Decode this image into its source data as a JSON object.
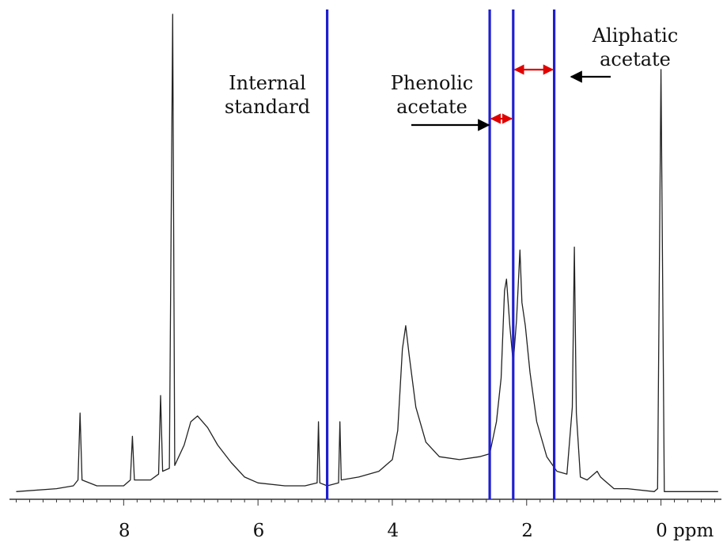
{
  "chart_data": {
    "type": "line",
    "title": "",
    "xlabel": "",
    "ylabel": "",
    "x_unit": "ppm",
    "x_reversed": true,
    "xlim": [
      9.7,
      -0.9
    ],
    "x_ticks": [
      8,
      6,
      4,
      2,
      0
    ],
    "x_tick_labels": [
      "8",
      "6",
      "4",
      "2",
      "0 ppm"
    ],
    "grid": false,
    "colors": {
      "spectrum": "#222222",
      "region_lines": "#1f1fd0",
      "red_arrows": "#e00000",
      "pointer_arrows": "#000000"
    },
    "region_lines_ppm": [
      4.97,
      2.55,
      2.2,
      1.59
    ],
    "annotations": {
      "internal_standard": [
        "Internal",
        "standard"
      ],
      "phenolic_acetate": [
        "Phenolic",
        "acetate"
      ],
      "aliphatic_acetate": [
        "Aliphatic",
        "acetate"
      ]
    },
    "red_arrow_ranges_ppm": [
      [
        2.55,
        2.2
      ],
      [
        2.2,
        1.59
      ]
    ],
    "series": [
      {
        "values": [
          {
            "x": 9.6,
            "y": 0.01
          },
          {
            "x": 9.0,
            "y": 0.02
          },
          {
            "x": 8.75,
            "y": 0.03
          },
          {
            "x": 8.68,
            "y": 0.05
          },
          {
            "x": 8.65,
            "y": 0.28
          },
          {
            "x": 8.62,
            "y": 0.05
          },
          {
            "x": 8.4,
            "y": 0.03
          },
          {
            "x": 8.0,
            "y": 0.03
          },
          {
            "x": 7.9,
            "y": 0.05
          },
          {
            "x": 7.87,
            "y": 0.2
          },
          {
            "x": 7.84,
            "y": 0.05
          },
          {
            "x": 7.6,
            "y": 0.05
          },
          {
            "x": 7.48,
            "y": 0.07
          },
          {
            "x": 7.45,
            "y": 0.34
          },
          {
            "x": 7.42,
            "y": 0.08
          },
          {
            "x": 7.32,
            "y": 0.09
          },
          {
            "x": 7.27,
            "y": 1.65
          },
          {
            "x": 7.24,
            "y": 0.1
          },
          {
            "x": 7.1,
            "y": 0.17
          },
          {
            "x": 7.0,
            "y": 0.25
          },
          {
            "x": 6.9,
            "y": 0.27
          },
          {
            "x": 6.75,
            "y": 0.23
          },
          {
            "x": 6.6,
            "y": 0.17
          },
          {
            "x": 6.4,
            "y": 0.11
          },
          {
            "x": 6.2,
            "y": 0.06
          },
          {
            "x": 6.0,
            "y": 0.04
          },
          {
            "x": 5.6,
            "y": 0.03
          },
          {
            "x": 5.3,
            "y": 0.03
          },
          {
            "x": 5.12,
            "y": 0.04
          },
          {
            "x": 5.1,
            "y": 0.25
          },
          {
            "x": 5.08,
            "y": 0.04
          },
          {
            "x": 4.97,
            "y": 0.03
          },
          {
            "x": 4.8,
            "y": 0.04
          },
          {
            "x": 4.78,
            "y": 0.25
          },
          {
            "x": 4.76,
            "y": 0.05
          },
          {
            "x": 4.5,
            "y": 0.06
          },
          {
            "x": 4.2,
            "y": 0.08
          },
          {
            "x": 4.0,
            "y": 0.12
          },
          {
            "x": 3.92,
            "y": 0.22
          },
          {
            "x": 3.85,
            "y": 0.5
          },
          {
            "x": 3.8,
            "y": 0.58
          },
          {
            "x": 3.75,
            "y": 0.48
          },
          {
            "x": 3.65,
            "y": 0.3
          },
          {
            "x": 3.5,
            "y": 0.18
          },
          {
            "x": 3.3,
            "y": 0.13
          },
          {
            "x": 3.0,
            "y": 0.12
          },
          {
            "x": 2.7,
            "y": 0.13
          },
          {
            "x": 2.55,
            "y": 0.14
          },
          {
            "x": 2.45,
            "y": 0.25
          },
          {
            "x": 2.38,
            "y": 0.4
          },
          {
            "x": 2.33,
            "y": 0.7
          },
          {
            "x": 2.3,
            "y": 0.74
          },
          {
            "x": 2.25,
            "y": 0.58
          },
          {
            "x": 2.2,
            "y": 0.45
          },
          {
            "x": 2.15,
            "y": 0.6
          },
          {
            "x": 2.1,
            "y": 0.84
          },
          {
            "x": 2.07,
            "y": 0.66
          },
          {
            "x": 2.02,
            "y": 0.58
          },
          {
            "x": 1.95,
            "y": 0.42
          },
          {
            "x": 1.85,
            "y": 0.25
          },
          {
            "x": 1.7,
            "y": 0.13
          },
          {
            "x": 1.55,
            "y": 0.08
          },
          {
            "x": 1.4,
            "y": 0.07
          },
          {
            "x": 1.32,
            "y": 0.3
          },
          {
            "x": 1.29,
            "y": 0.85
          },
          {
            "x": 1.26,
            "y": 0.28
          },
          {
            "x": 1.2,
            "y": 0.06
          },
          {
            "x": 1.1,
            "y": 0.05
          },
          {
            "x": 0.95,
            "y": 0.08
          },
          {
            "x": 0.9,
            "y": 0.06
          },
          {
            "x": 0.85,
            "y": 0.05
          },
          {
            "x": 0.7,
            "y": 0.02
          },
          {
            "x": 0.5,
            "y": 0.02
          },
          {
            "x": 0.1,
            "y": 0.01
          },
          {
            "x": 0.05,
            "y": 0.02
          },
          {
            "x": 0.0,
            "y": 1.46
          },
          {
            "x": -0.05,
            "y": 0.01
          },
          {
            "x": -0.2,
            "y": 0.01
          },
          {
            "x": -0.85,
            "y": 0.01
          }
        ]
      }
    ]
  }
}
